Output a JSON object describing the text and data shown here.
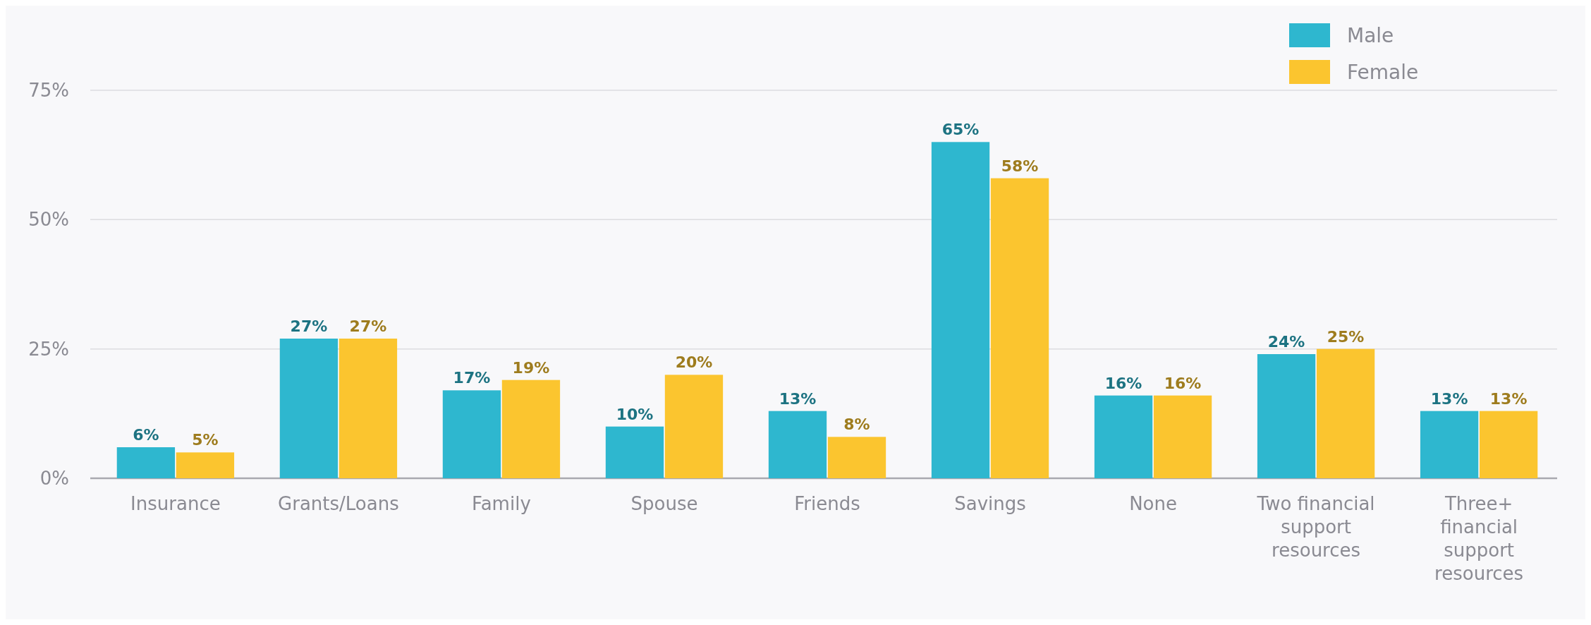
{
  "chart_data": {
    "type": "bar",
    "categories": [
      "Insurance",
      "Grants/Loans",
      "Family",
      "Spouse",
      "Friends",
      "Savings",
      "None",
      "Two financial support resources",
      "Three+ financial support resources"
    ],
    "series": [
      {
        "name": "Male",
        "color": "#2eb7cf",
        "values": [
          6,
          27,
          17,
          10,
          13,
          65,
          16,
          24,
          13
        ],
        "value_labels": [
          "6%",
          "27%",
          "17%",
          "10%",
          "13%",
          "65%",
          "16%",
          "24%",
          "13%"
        ]
      },
      {
        "name": "Female",
        "color": "#fbc52f",
        "values": [
          5,
          27,
          19,
          20,
          8,
          58,
          16,
          25,
          13
        ],
        "value_labels": [
          "5%",
          "27%",
          "19%",
          "20%",
          "8%",
          "58%",
          "16%",
          "25%",
          "13%"
        ]
      }
    ],
    "ylim": [
      0,
      75
    ],
    "yticks": [
      {
        "value": 0,
        "label": "0%"
      },
      {
        "value": 25,
        "label": "25%"
      },
      {
        "value": 50,
        "label": "50%"
      },
      {
        "value": 75,
        "label": "75%"
      }
    ],
    "grid": "y",
    "legend": "top right"
  }
}
